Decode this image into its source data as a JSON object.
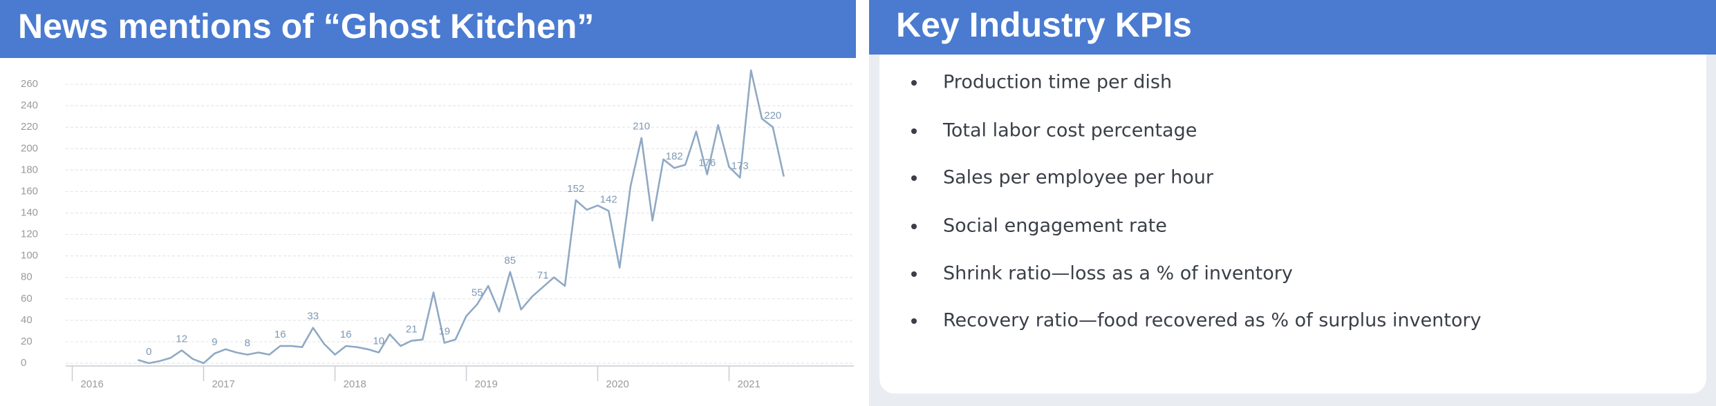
{
  "chart_data": {
    "type": "line",
    "title": "News mentions of “Ghost Kitchen”",
    "x": [
      2016.5,
      2016.583,
      2016.667,
      2016.75,
      2016.833,
      2016.917,
      2017,
      2017.083,
      2017.167,
      2017.25,
      2017.333,
      2017.417,
      2017.5,
      2017.583,
      2017.667,
      2017.75,
      2017.833,
      2017.917,
      2018,
      2018.083,
      2018.167,
      2018.25,
      2018.333,
      2018.417,
      2018.5,
      2018.583,
      2018.667,
      2018.75,
      2018.833,
      2018.917,
      2019,
      2019.083,
      2019.167,
      2019.25,
      2019.333,
      2019.417,
      2019.5,
      2019.583,
      2019.667,
      2019.75,
      2019.833,
      2019.917,
      2020,
      2020.083,
      2020.167,
      2020.25,
      2020.333,
      2020.417,
      2020.5,
      2020.583,
      2020.667,
      2020.75,
      2020.833,
      2020.917,
      2021,
      2021.083,
      2021.167,
      2021.25,
      2021.333,
      2021.417
    ],
    "values": [
      3,
      0,
      2,
      5,
      12,
      4,
      0,
      9,
      13,
      10,
      8,
      10,
      8,
      16,
      16,
      15,
      33,
      18,
      8,
      16,
      15,
      13,
      10,
      27,
      16,
      21,
      22,
      66,
      19,
      22,
      44,
      55,
      72,
      48,
      85,
      50,
      62,
      71,
      80,
      72,
      152,
      143,
      147,
      142,
      89,
      165,
      210,
      133,
      190,
      182,
      185,
      216,
      176,
      222,
      183,
      173,
      273,
      228,
      220,
      174
    ],
    "value_labels": [
      null,
      "0",
      null,
      null,
      "12",
      null,
      null,
      "9",
      null,
      null,
      "8",
      null,
      null,
      "16",
      null,
      null,
      "33",
      null,
      null,
      "16",
      null,
      null,
      "10",
      null,
      null,
      "21",
      null,
      null,
      "19",
      null,
      null,
      "55",
      null,
      null,
      "85",
      null,
      null,
      "71",
      null,
      null,
      "152",
      null,
      null,
      "142",
      null,
      null,
      "210",
      null,
      null,
      "182",
      null,
      null,
      "176",
      null,
      null,
      "173",
      null,
      null,
      "220",
      null
    ],
    "color": "#8fa9c4",
    "xlim": [
      2015.95,
      2021.95
    ],
    "xticks": [
      2016,
      2017,
      2018,
      2019,
      2020,
      2021
    ],
    "ylim": [
      0,
      280
    ],
    "yticks": [
      0,
      20,
      40,
      60,
      80,
      100,
      120,
      140,
      160,
      180,
      200,
      220,
      240,
      260
    ],
    "grid": true
  },
  "kpi_panel": {
    "title": "Key Industry KPIs",
    "items": [
      "Production time per dish",
      "Total labor cost percentage",
      "Sales per employee per hour",
      "Social engagement rate",
      "Shrink ratio—loss as a % of inventory",
      "Recovery ratio—food recovered as % of surplus inventory"
    ]
  }
}
